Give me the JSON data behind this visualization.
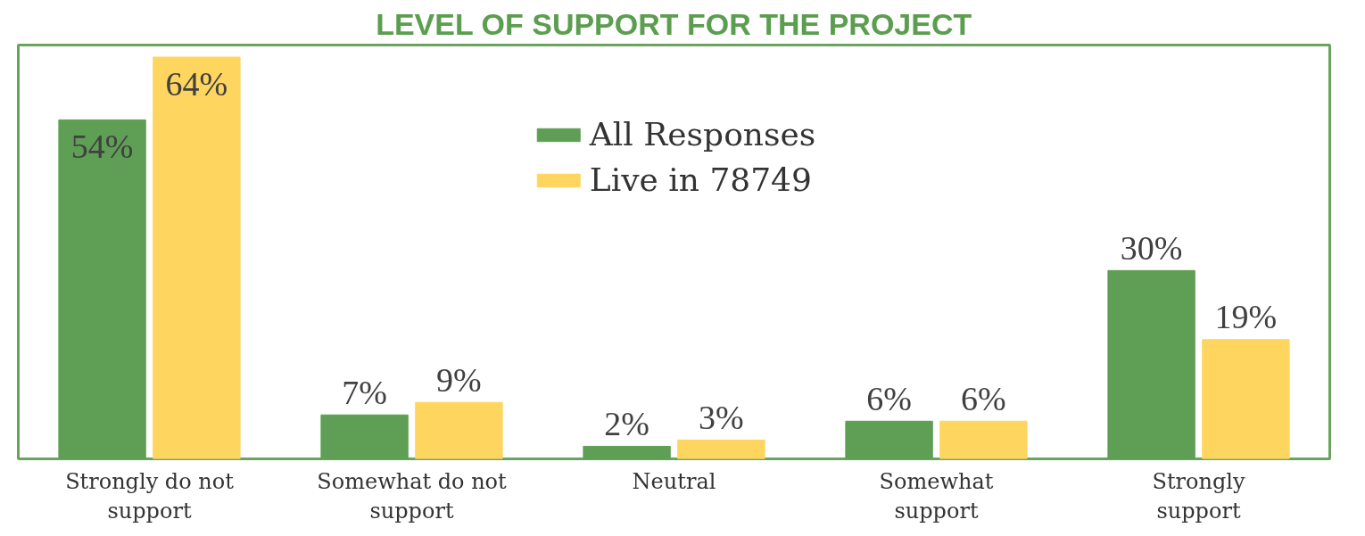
{
  "chart_data": {
    "type": "bar",
    "title": "LEVEL OF SUPPORT FOR THE PROJECT",
    "categories": [
      "Strongly do not support",
      "Somewhat do not support",
      "Neutral",
      "Somewhat support",
      "Strongly support"
    ],
    "series": [
      {
        "name": "All Responses",
        "color": "#5f9e55",
        "values": [
          54,
          7,
          2,
          6,
          30
        ],
        "value_labels": [
          "54%",
          "7%",
          "2%",
          "6%",
          "30%"
        ]
      },
      {
        "name": "Live in 78749",
        "color": "#fed55e",
        "values": [
          64,
          9,
          3,
          6,
          19
        ],
        "value_labels": [
          "64%",
          "9%",
          "3%",
          "6%",
          "19%"
        ]
      }
    ],
    "legend": "top",
    "grid": false
  }
}
